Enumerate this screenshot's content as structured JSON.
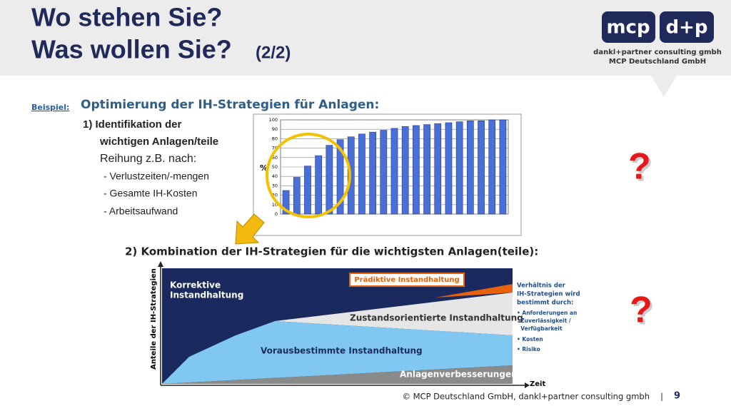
{
  "header": {
    "title_line1": "Wo stehen Sie?",
    "title_line2": "Was wollen Sie?",
    "title_suffix": "(2/2)"
  },
  "logo": {
    "left": "mcp",
    "right": "d+p",
    "line1": "dankl+partner consulting gmbh",
    "line2": "MCP Deutschland GmbH"
  },
  "example": {
    "label": "Beispiel:",
    "heading": "Optimierung der IH-Strategien für Anlagen:"
  },
  "step1": {
    "line1": "1) Identifikation der",
    "line2": "wichtigen Anlagen/teile",
    "line3": "Reihung z.B. nach:",
    "items": [
      "- Verlustzeiten/-mengen",
      "- Gesamte IH-Kosten",
      "- Arbeitsaufwand"
    ]
  },
  "chart_data": {
    "type": "bar",
    "ylabel": "%",
    "values": [
      25,
      39,
      51,
      62,
      73,
      79,
      82,
      85,
      87,
      89,
      91,
      93,
      94,
      95,
      96,
      97,
      98,
      99,
      99,
      100,
      100
    ],
    "color": "#4a6fd6",
    "ylim": [
      0,
      100
    ],
    "yticks": [
      0,
      10,
      20,
      30,
      40,
      50,
      60,
      70,
      80,
      90,
      100
    ],
    "grid": true
  },
  "step2": {
    "heading": "2) Kombination der IH-Strategien für die wichtigsten Anlagen(teile):"
  },
  "diagram": {
    "y_axis": "Anteile der IH-Strategien",
    "x_axis": "Zeit",
    "corrective_1": "Korrektive",
    "corrective_2": "Instandhaltung",
    "predictive": "Prädiktive Instandhaltung",
    "condition": "Zustandsorientierte Instandhaltung",
    "preventive": "Vorausbestimmte Instandhaltung",
    "improvement": "Anlagenverbesserungen",
    "side": {
      "lines": [
        "Verhältnis der",
        "IH-Strategien wird",
        "bestimmt durch:"
      ],
      "bullets": [
        "• Anforderungen an",
        "  Zuverlässigkeit /",
        "  Verfügbarkeit",
        "• Kosten",
        "• Risiko"
      ]
    }
  },
  "questions": [
    "?",
    "?"
  ],
  "footer": {
    "copyright": "© MCP Deutschland GmbH, dankl+partner consulting gmbh",
    "separator": "|",
    "page": "9"
  }
}
